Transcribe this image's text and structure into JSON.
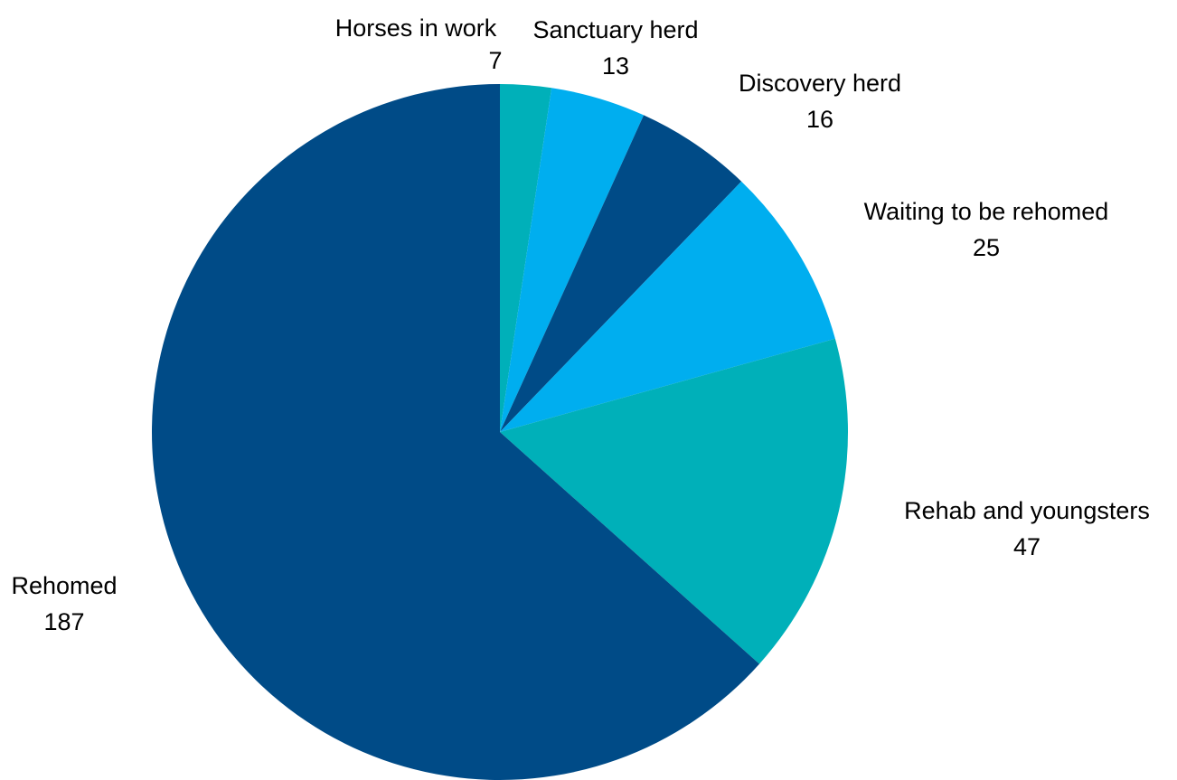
{
  "chart_data": {
    "type": "pie",
    "start_angle": "12 o'clock",
    "direction": "clockwise",
    "slices": [
      {
        "label": "Horses in work",
        "value": 7,
        "color": "#00B0B9"
      },
      {
        "label": "Sanctuary herd",
        "value": 13,
        "color": "#00AEEF"
      },
      {
        "label": "Discovery herd",
        "value": 16,
        "color": "#004B87"
      },
      {
        "label": "Waiting to be rehomed",
        "value": 25,
        "color": "#00AEEF"
      },
      {
        "label": "Rehab and youngsters",
        "value": 47,
        "color": "#00B0B9"
      },
      {
        "label": "Rehomed",
        "value": 187,
        "color": "#004B87"
      }
    ]
  }
}
